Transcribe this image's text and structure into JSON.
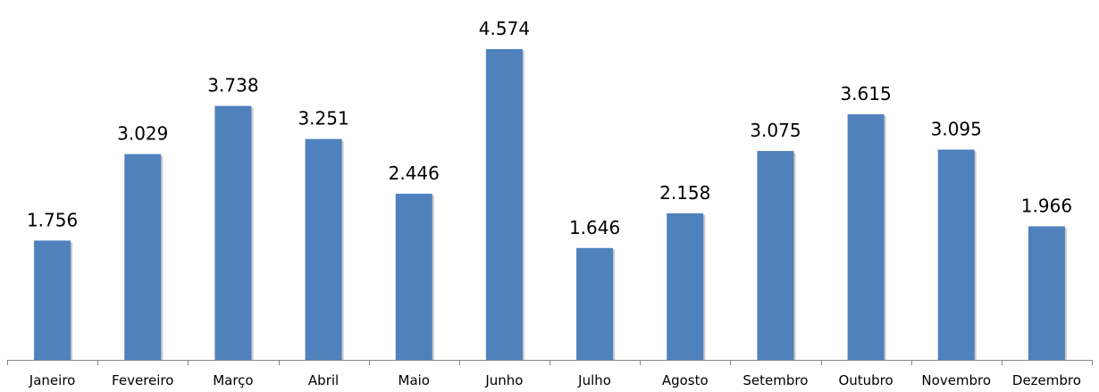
{
  "chart_data": {
    "type": "bar",
    "title": "",
    "xlabel": "",
    "ylabel": "",
    "categories": [
      "Janeiro",
      "Fevereiro",
      "Março",
      "Abril",
      "Maio",
      "Junho",
      "Julho",
      "Agosto",
      "Setembro",
      "Outubro",
      "Novembro",
      "Dezembro"
    ],
    "values": [
      1756,
      3029,
      3738,
      3251,
      2446,
      4574,
      1646,
      2158,
      3075,
      3615,
      3095,
      1966
    ],
    "value_labels": [
      "1.756",
      "3.029",
      "3.738",
      "3.251",
      "2.446",
      "4.574",
      "1.646",
      "2.158",
      "3.075",
      "3.615",
      "3.095",
      "1.966"
    ],
    "ylim": [
      0,
      4574
    ],
    "grid": false,
    "legend": "none",
    "bar_color": "#4F81BD"
  }
}
